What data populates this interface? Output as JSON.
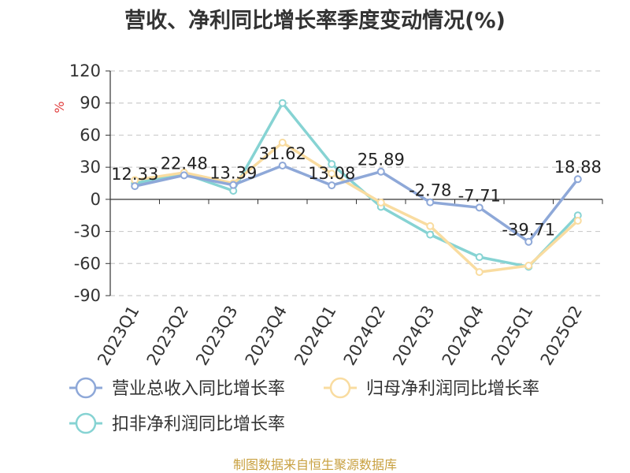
{
  "chart_data": {
    "type": "line",
    "title": "营收、净利同比增长率季度变动情况(%)",
    "ylabel": "%",
    "ylim": [
      -90,
      120
    ],
    "yticks": [
      120,
      90,
      60,
      30,
      0,
      -30,
      -60,
      -90
    ],
    "grid": true,
    "legend_position": "bottom",
    "categories": [
      "2023Q1",
      "2023Q2",
      "2023Q3",
      "2023Q4",
      "2024Q1",
      "2024Q2",
      "2024Q3",
      "2024Q4",
      "2025Q1",
      "2025Q2"
    ],
    "series": [
      {
        "name": "营业总收入同比增长率",
        "color": "#8ea8d8",
        "values": [
          12.33,
          22.48,
          13.39,
          31.62,
          13.08,
          25.89,
          -2.78,
          -7.71,
          -39.71,
          18.88
        ],
        "labels": [
          "12.33",
          "22.48",
          "13.39",
          "31.62",
          "13.08",
          "25.89",
          "-2.78",
          "-7.71",
          "-39.71",
          "18.88"
        ]
      },
      {
        "name": "归母净利润同比增长率",
        "color": "#f9dca0",
        "values": [
          18,
          25,
          15,
          53,
          24,
          -3,
          -25,
          -68,
          -62,
          -20
        ]
      },
      {
        "name": "扣非净利润同比增长率",
        "color": "#86d3d3",
        "values": [
          15,
          24,
          8,
          90,
          33,
          -7,
          -33,
          -54,
          -63,
          -15
        ]
      }
    ]
  },
  "source": "制图数据来自恒生聚源数据库"
}
